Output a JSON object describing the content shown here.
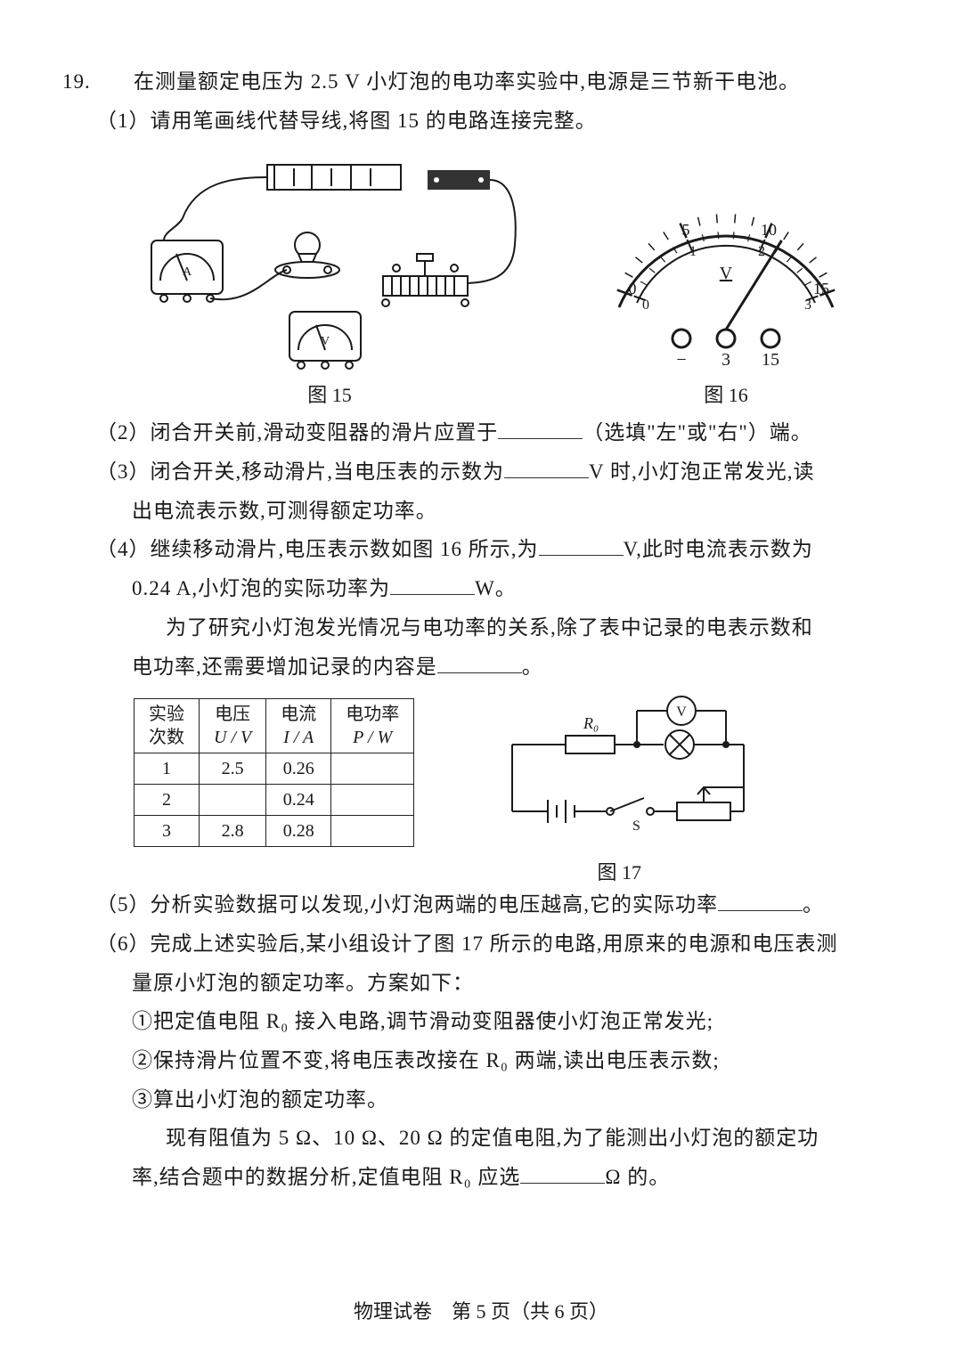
{
  "q_num": "19.",
  "stem": "在测量额定电压为 2.5 V 小灯泡的电功率实验中,电源是三节新干电池。",
  "p1": "（1）请用笔画线代替导线,将图 15 的电路连接完整。",
  "fig15_cap": "图 15",
  "fig16_cap": "图 16",
  "p2a": "（2）闭合开关前,滑动变阻器的滑片应置于",
  "p2b": "（选填\"左\"或\"右\"）端。",
  "p3a": "（3）闭合开关,移动滑片,当电压表的示数为",
  "p3b": "V 时,小灯泡正常发光,读",
  "p3c": "出电流表示数,可测得额定功率。",
  "p4a": "（4）继续移动滑片,电压表示数如图 16 所示,为",
  "p4b": "V,此时电流表示数为",
  "p4c": "0.24 A,小灯泡的实际功率为",
  "p4d": "W。",
  "p4e": "为了研究小灯泡发光情况与电功率的关系,除了表中记录的电表示数和",
  "p4f": "电功率,还需要增加记录的内容是",
  "p4g": "。",
  "table": {
    "headers": [
      [
        "实验",
        "次数"
      ],
      [
        "电压",
        "U / V"
      ],
      [
        "电流",
        "I / A"
      ],
      [
        "电功率",
        "P / W"
      ]
    ],
    "rows": [
      [
        "1",
        "2.5",
        "0.26",
        ""
      ],
      [
        "2",
        "",
        "0.24",
        ""
      ],
      [
        "3",
        "2.8",
        "0.28",
        ""
      ]
    ]
  },
  "fig17_cap": "图 17",
  "p5a": "（5）分析实验数据可以发现,小灯泡两端的电压越高,它的实际功率",
  "p5b": "。",
  "p6a": "（6）完成上述实验后,某小组设计了图 17 所示的电路,用原来的电源和电压表测",
  "p6b": "量原小灯泡的额定功率。方案如下：",
  "p6c": "①把定值电阻 R₀ 接入电路,调节滑动变阻器使小灯泡正常发光;",
  "p6d": "②保持滑片位置不变,将电压表改接在 R₀ 两端,读出电压表示数;",
  "p6e": "③算出小灯泡的额定功率。",
  "p6f": "现有阻值为 5 Ω、10 Ω、20 Ω 的定值电阻,为了能测出小灯泡的额定功",
  "p6g1": "率,结合题中的数据分析,定值电阻 R₀ 应选",
  "p6g2": "Ω 的。",
  "footer": "物理试卷　第 5 页（共 6 页）",
  "voltmeter": {
    "outer_major": [
      "0",
      "5",
      "10",
      "15"
    ],
    "inner_major": [
      "0",
      "1",
      "2",
      "3"
    ],
    "unit": "V",
    "terminal_labels": [
      "−",
      "3",
      "15"
    ],
    "needle_angle_deg": 32,
    "arc_start_deg": -70,
    "arc_end_deg": 70,
    "colors": {
      "scale": "#1a1a1a",
      "needle": "#1a1a1a",
      "bg": "#ffffff"
    }
  },
  "circuit17": {
    "labels": {
      "R0": "R₀",
      "V": "V",
      "S": "S"
    },
    "colors": {
      "wire": "#1a1a1a"
    }
  },
  "colors": {
    "text": "#1a1a1a",
    "bg": "#ffffff",
    "border": "#222222"
  }
}
